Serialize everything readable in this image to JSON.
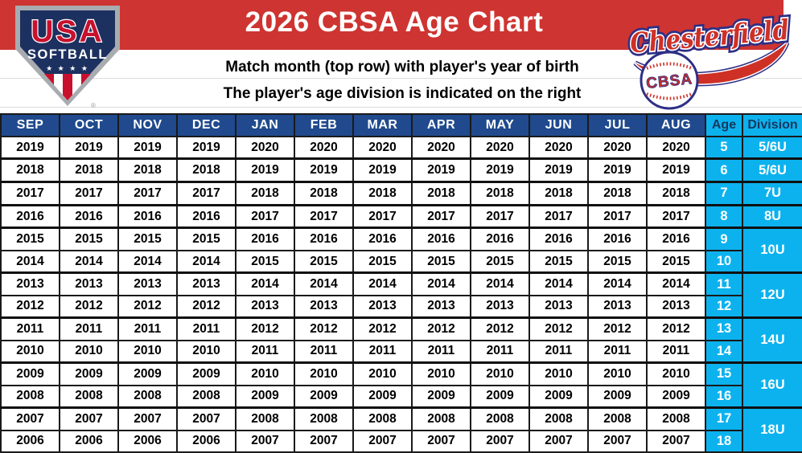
{
  "banner": {
    "title": "2026 CBSA Age Chart",
    "subtitle_line1": "Match month (top row) with player's year of birth",
    "subtitle_line2": "The player's age division is indicated on the right"
  },
  "logos": {
    "usa_softball": {
      "word_usa": "USA",
      "word_softball": "SOFTBALL",
      "stars": "★ ★ ★ ★",
      "registered": "®"
    },
    "chesterfield": {
      "script_text": "Chesterfield",
      "ball_text": "CBSA"
    }
  },
  "colors": {
    "band_red": "#ce3431",
    "header_navy": "#204a8d",
    "cyan": "#0cb2ee",
    "cyan_header_text": "#17375e",
    "logo_navy": "#1d3160",
    "logo_red": "#c8102e",
    "script_red": "#cf3026",
    "outline_navy": "#2d2f86"
  },
  "chart_data": {
    "type": "table",
    "title": "2026 CBSA Age Chart",
    "columns": [
      "SEP",
      "OCT",
      "NOV",
      "DEC",
      "JAN",
      "FEB",
      "MAR",
      "APR",
      "MAY",
      "JUN",
      "JUL",
      "AUG",
      "Age",
      "Division"
    ],
    "rows": [
      {
        "years": [
          "2019",
          "2019",
          "2019",
          "2019",
          "2020",
          "2020",
          "2020",
          "2020",
          "2020",
          "2020",
          "2020",
          "2020"
        ],
        "age": "5",
        "division": "5/6U",
        "rowspan": 1
      },
      {
        "years": [
          "2018",
          "2018",
          "2018",
          "2018",
          "2019",
          "2019",
          "2019",
          "2019",
          "2019",
          "2019",
          "2019",
          "2019"
        ],
        "age": "6",
        "division": "5/6U",
        "rowspan": 1,
        "groupStart": true
      },
      {
        "years": [
          "2017",
          "2017",
          "2017",
          "2017",
          "2018",
          "2018",
          "2018",
          "2018",
          "2018",
          "2018",
          "2018",
          "2018"
        ],
        "age": "7",
        "division": "7U",
        "rowspan": 1,
        "groupStart": true
      },
      {
        "years": [
          "2016",
          "2016",
          "2016",
          "2016",
          "2017",
          "2017",
          "2017",
          "2017",
          "2017",
          "2017",
          "2017",
          "2017"
        ],
        "age": "8",
        "division": "8U",
        "rowspan": 1,
        "groupStart": true
      },
      {
        "years": [
          "2015",
          "2015",
          "2015",
          "2015",
          "2016",
          "2016",
          "2016",
          "2016",
          "2016",
          "2016",
          "2016",
          "2016"
        ],
        "age": "9",
        "division": "10U",
        "rowspan": 2,
        "groupStart": true
      },
      {
        "years": [
          "2014",
          "2014",
          "2014",
          "2014",
          "2015",
          "2015",
          "2015",
          "2015",
          "2015",
          "2015",
          "2015",
          "2015"
        ],
        "age": "10"
      },
      {
        "years": [
          "2013",
          "2013",
          "2013",
          "2013",
          "2014",
          "2014",
          "2014",
          "2014",
          "2014",
          "2014",
          "2014",
          "2014"
        ],
        "age": "11",
        "division": "12U",
        "rowspan": 2,
        "groupStart": true
      },
      {
        "years": [
          "2012",
          "2012",
          "2012",
          "2012",
          "2013",
          "2013",
          "2013",
          "2013",
          "2013",
          "2013",
          "2013",
          "2013"
        ],
        "age": "12"
      },
      {
        "years": [
          "2011",
          "2011",
          "2011",
          "2011",
          "2012",
          "2012",
          "2012",
          "2012",
          "2012",
          "2012",
          "2012",
          "2012"
        ],
        "age": "13",
        "division": "14U",
        "rowspan": 2,
        "groupStart": true
      },
      {
        "years": [
          "2010",
          "2010",
          "2010",
          "2010",
          "2011",
          "2011",
          "2011",
          "2011",
          "2011",
          "2011",
          "2011",
          "2011"
        ],
        "age": "14"
      },
      {
        "years": [
          "2009",
          "2009",
          "2009",
          "2009",
          "2010",
          "2010",
          "2010",
          "2010",
          "2010",
          "2010",
          "2010",
          "2010"
        ],
        "age": "15",
        "division": "16U",
        "rowspan": 2,
        "groupStart": true
      },
      {
        "years": [
          "2008",
          "2008",
          "2008",
          "2008",
          "2009",
          "2009",
          "2009",
          "2009",
          "2009",
          "2009",
          "2009",
          "2009"
        ],
        "age": "16"
      },
      {
        "years": [
          "2007",
          "2007",
          "2007",
          "2007",
          "2008",
          "2008",
          "2008",
          "2008",
          "2008",
          "2008",
          "2008",
          "2008"
        ],
        "age": "17",
        "division": "18U",
        "rowspan": 2,
        "groupStart": true
      },
      {
        "years": [
          "2006",
          "2006",
          "2006",
          "2006",
          "2007",
          "2007",
          "2007",
          "2007",
          "2007",
          "2007",
          "2007",
          "2007"
        ],
        "age": "18"
      }
    ]
  }
}
